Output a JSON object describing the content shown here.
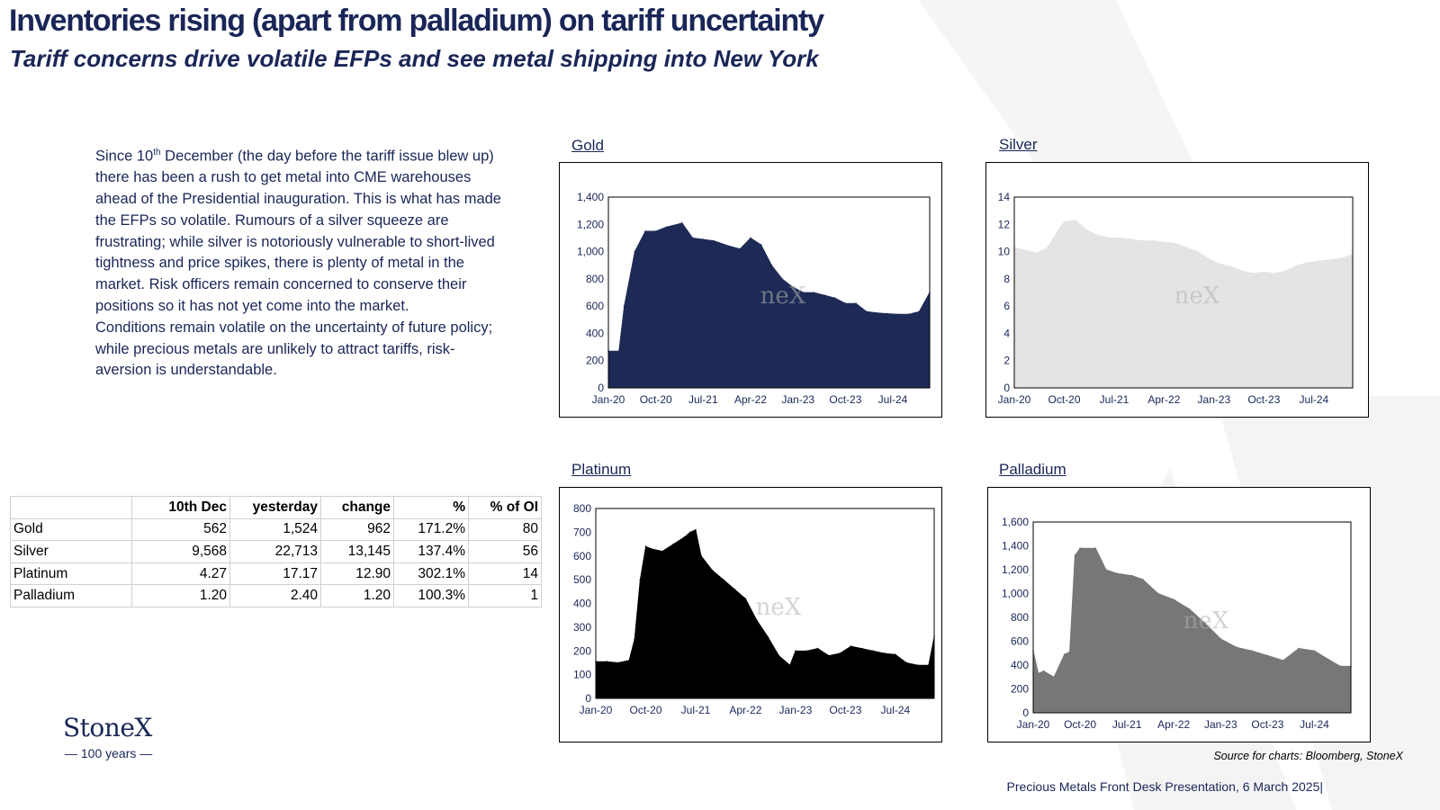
{
  "header": {
    "title": "Inventories rising (apart from palladium) on tariff uncertainty",
    "subtitle": "Tariff concerns drive volatile EFPs and see metal shipping into New York"
  },
  "body": {
    "p1_pre": "Since 10",
    "p1_sup": "th",
    "p1_post": " December (the day before the tariff issue blew up) there has been a rush to get metal into CME warehouses ahead of the Presidential inauguration.  This is what has made the EFPs so volatile.  Rumours of a silver squeeze are frustrating; while silver is notoriously vulnerable to short-lived tightness and price spikes, there is plenty of metal in the market.  Risk officers remain concerned to conserve their positions so it has not yet  come into the market.",
    "p2": "Conditions remain volatile on the uncertainty of future policy; while precious metals are unlikely to attract tariffs, risk-aversion is understandable."
  },
  "table": {
    "headers": [
      "",
      "10th Dec",
      "yesterday",
      "change",
      "%",
      "% of OI"
    ],
    "rows": [
      [
        "Gold",
        "562",
        "1,524",
        "962",
        "171.2%",
        "80"
      ],
      [
        "Silver",
        "9,568",
        "22,713",
        "13,145",
        "137.4%",
        "56"
      ],
      [
        "Platinum",
        "4.27",
        "17.17",
        "12.90",
        "302.1%",
        "14"
      ],
      [
        "Palladium",
        "1.20",
        "2.40",
        "1.20",
        "100.3%",
        "1"
      ]
    ]
  },
  "chart_data": [
    {
      "type": "area",
      "title": "Gold",
      "color": "#1e2a56",
      "x": [
        "Jan-20",
        "Mar-20",
        "Apr-20",
        "Jun-20",
        "Aug-20",
        "Oct-20",
        "Dec-20",
        "Mar-21",
        "May-21",
        "Jul-21",
        "Sep-21",
        "Dec-21",
        "Feb-22",
        "Apr-22",
        "Jun-22",
        "Aug-22",
        "Oct-22",
        "Dec-22",
        "Feb-23",
        "Apr-23",
        "Jun-23",
        "Aug-23",
        "Oct-23",
        "Dec-23",
        "Feb-24",
        "Apr-24",
        "Jun-24",
        "Aug-24",
        "Oct-24",
        "Dec-24",
        "Feb-25"
      ],
      "values": [
        270,
        270,
        600,
        1000,
        1150,
        1150,
        1180,
        1210,
        1100,
        1090,
        1080,
        1040,
        1020,
        1100,
        1050,
        900,
        800,
        740,
        700,
        700,
        680,
        660,
        620,
        620,
        560,
        550,
        545,
        540,
        540,
        560,
        700
      ],
      "x_ticks": [
        "Jan-20",
        "Oct-20",
        "Jul-21",
        "Apr-22",
        "Jan-23",
        "Oct-23",
        "Jul-24"
      ],
      "y_ticks": [
        "0",
        "200",
        "400",
        "600",
        "800",
        "1,000",
        "1,200",
        "1,400"
      ],
      "ylim": [
        0,
        1400
      ]
    },
    {
      "type": "area",
      "title": "Silver",
      "color": "#e4e4e4",
      "x": [
        "Jan-20",
        "Mar-20",
        "May-20",
        "Jul-20",
        "Sep-20",
        "Oct-20",
        "Dec-20",
        "Feb-21",
        "Apr-21",
        "Jun-21",
        "Aug-21",
        "Oct-21",
        "Dec-21",
        "Feb-22",
        "Apr-22",
        "Jun-22",
        "Aug-22",
        "Oct-22",
        "Dec-22",
        "Feb-23",
        "Apr-23",
        "Jun-23",
        "Aug-23",
        "Oct-23",
        "Dec-23",
        "Feb-24",
        "Apr-24",
        "Jun-24",
        "Aug-24",
        "Oct-24",
        "Dec-24",
        "Feb-25"
      ],
      "values": [
        10.3,
        10.1,
        9.9,
        10.3,
        11.6,
        12.2,
        12.3,
        11.6,
        11.2,
        11.0,
        11.0,
        10.9,
        10.8,
        10.8,
        10.7,
        10.6,
        10.3,
        10.0,
        9.5,
        9.1,
        8.9,
        8.6,
        8.4,
        8.5,
        8.4,
        8.6,
        9.0,
        9.2,
        9.3,
        9.4,
        9.5,
        9.8
      ],
      "x_ticks": [
        "Jan-20",
        "Oct-20",
        "Jul-21",
        "Apr-22",
        "Jan-23",
        "Oct-23",
        "Jul-24"
      ],
      "y_ticks": [
        "0",
        "2",
        "4",
        "6",
        "8",
        "10",
        "12",
        "14"
      ],
      "ylim": [
        0,
        14
      ]
    },
    {
      "type": "area",
      "title": "Platinum",
      "color": "#000000",
      "x": [
        "Jan-20",
        "Mar-20",
        "May-20",
        "Jul-20",
        "Aug-20",
        "Sep-20",
        "Oct-20",
        "Nov-20",
        "Jan-21",
        "Mar-21",
        "May-21",
        "Jun-21",
        "Jul-21",
        "Aug-21",
        "Oct-21",
        "Dec-21",
        "Feb-22",
        "Apr-22",
        "Jun-22",
        "Aug-22",
        "Oct-22",
        "Dec-22",
        "Jan-23",
        "Mar-23",
        "May-23",
        "Jul-23",
        "Sep-23",
        "Nov-23",
        "Jan-24",
        "Mar-24",
        "May-24",
        "Jul-24",
        "Sep-24",
        "Nov-24",
        "Jan-25",
        "Feb-25"
      ],
      "values": [
        155,
        155,
        150,
        160,
        250,
        500,
        640,
        630,
        620,
        650,
        680,
        700,
        710,
        600,
        540,
        500,
        460,
        420,
        330,
        260,
        180,
        140,
        200,
        200,
        210,
        180,
        190,
        220,
        210,
        200,
        190,
        185,
        150,
        140,
        140,
        260
      ],
      "x_ticks": [
        "Jan-20",
        "Oct-20",
        "Jul-21",
        "Apr-22",
        "Jan-23",
        "Oct-23",
        "Jul-24"
      ],
      "y_ticks": [
        "0",
        "100",
        "200",
        "300",
        "400",
        "500",
        "600",
        "700",
        "800"
      ],
      "ylim": [
        0,
        800
      ]
    },
    {
      "type": "area",
      "title": "Palladium",
      "color": "#777777",
      "x": [
        "Jan-20",
        "Feb-20",
        "Mar-20",
        "May-20",
        "Jul-20",
        "Aug-20",
        "Sep-20",
        "Oct-20",
        "Jan-21",
        "Mar-21",
        "May-21",
        "Aug-21",
        "Oct-21",
        "Jan-22",
        "Apr-22",
        "Jul-22",
        "Oct-22",
        "Jan-23",
        "Apr-23",
        "Jul-23",
        "Oct-23",
        "Jan-24",
        "Apr-24",
        "Jul-24",
        "Oct-24",
        "Dec-24",
        "Feb-25"
      ],
      "values": [
        520,
        330,
        350,
        300,
        490,
        510,
        1320,
        1380,
        1380,
        1200,
        1170,
        1150,
        1120,
        1000,
        950,
        870,
        750,
        620,
        550,
        520,
        480,
        440,
        540,
        520,
        440,
        390,
        390
      ],
      "x_ticks": [
        "Jan-20",
        "Oct-20",
        "Jul-21",
        "Apr-22",
        "Jan-23",
        "Oct-23",
        "Jul-24"
      ],
      "y_ticks": [
        "0",
        "200",
        "400",
        "600",
        "800",
        "1,000",
        "1,200",
        "1,400",
        "1,600"
      ],
      "ylim": [
        0,
        1600
      ]
    }
  ],
  "logo": {
    "name": "StoneX",
    "years": "— 100 years —",
    "chart_watermark": "neX"
  },
  "footer": {
    "source": "Source for charts: Bloomberg, StoneX",
    "presentation": "Precious Metals Front Desk Presentation, 6 March 2025|"
  }
}
